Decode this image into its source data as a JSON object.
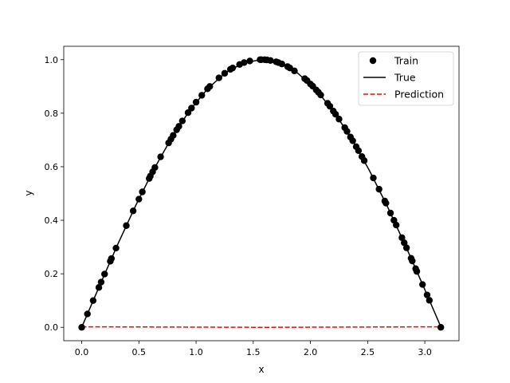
{
  "chart_data": {
    "type": "scatter",
    "title": "",
    "xlabel": "x",
    "ylabel": "y",
    "xlim": [
      -0.157,
      3.299
    ],
    "ylim": [
      -0.05,
      1.05
    ],
    "xticks": [
      0.0,
      0.5,
      1.0,
      1.5,
      2.0,
      2.5,
      3.0
    ],
    "xtick_labels": [
      "0.0",
      "0.5",
      "1.0",
      "1.5",
      "2.0",
      "2.5",
      "3.0"
    ],
    "yticks": [
      0.0,
      0.2,
      0.4,
      0.6,
      0.8,
      1.0
    ],
    "ytick_labels": [
      "0.0",
      "0.2",
      "0.4",
      "0.6",
      "0.8",
      "1.0"
    ],
    "grid": false,
    "legend_position": "top-right",
    "series": [
      {
        "name": "Train",
        "kind": "scatter",
        "color": "#000000",
        "x": [
          0.0,
          0.05,
          0.1,
          0.15,
          0.17,
          0.2,
          0.25,
          0.26,
          0.3,
          0.39,
          0.45,
          0.5,
          0.53,
          0.59,
          0.6,
          0.62,
          0.64,
          0.69,
          0.76,
          0.78,
          0.8,
          0.83,
          0.85,
          0.88,
          0.93,
          0.96,
          1.0,
          1.05,
          1.1,
          1.12,
          1.2,
          1.25,
          1.3,
          1.32,
          1.38,
          1.42,
          1.47,
          1.56,
          1.57,
          1.6,
          1.62,
          1.65,
          1.7,
          1.72,
          1.75,
          1.8,
          1.82,
          1.86,
          1.95,
          1.97,
          2.0,
          2.02,
          2.05,
          2.07,
          2.09,
          2.15,
          2.17,
          2.2,
          2.22,
          2.25,
          2.3,
          2.32,
          2.35,
          2.37,
          2.4,
          2.42,
          2.45,
          2.47,
          2.55,
          2.6,
          2.65,
          2.66,
          2.7,
          2.73,
          2.75,
          2.8,
          2.82,
          2.84,
          2.88,
          2.89,
          2.92,
          2.93,
          2.98,
          3.02,
          3.04,
          3.14
        ],
        "y": [
          0.0,
          0.05,
          0.1,
          0.149,
          0.169,
          0.199,
          0.247,
          0.257,
          0.296,
          0.38,
          0.435,
          0.479,
          0.506,
          0.556,
          0.565,
          0.581,
          0.597,
          0.637,
          0.689,
          0.703,
          0.717,
          0.738,
          0.751,
          0.771,
          0.802,
          0.819,
          0.841,
          0.867,
          0.891,
          0.9,
          0.932,
          0.949,
          0.964,
          0.969,
          0.982,
          0.989,
          0.995,
          1.0,
          1.0,
          1.0,
          0.999,
          0.997,
          0.992,
          0.989,
          0.984,
          0.974,
          0.969,
          0.958,
          0.929,
          0.922,
          0.909,
          0.901,
          0.887,
          0.878,
          0.868,
          0.837,
          0.826,
          0.808,
          0.796,
          0.778,
          0.746,
          0.732,
          0.711,
          0.697,
          0.675,
          0.66,
          0.638,
          0.623,
          0.558,
          0.516,
          0.472,
          0.464,
          0.427,
          0.4,
          0.382,
          0.335,
          0.316,
          0.297,
          0.258,
          0.248,
          0.219,
          0.209,
          0.16,
          0.121,
          0.101,
          0.0
        ]
      },
      {
        "name": "True",
        "kind": "line",
        "color": "#000000",
        "style": "solid",
        "x": [
          0.0,
          0.157,
          0.314,
          0.471,
          0.628,
          0.785,
          0.942,
          1.1,
          1.257,
          1.414,
          1.571,
          1.728,
          1.885,
          2.042,
          2.199,
          2.356,
          2.513,
          2.67,
          2.827,
          2.985,
          3.142
        ],
        "y": [
          0.0,
          0.156,
          0.309,
          0.454,
          0.588,
          0.707,
          0.809,
          0.891,
          0.951,
          0.988,
          1.0,
          0.988,
          0.951,
          0.891,
          0.809,
          0.707,
          0.588,
          0.454,
          0.309,
          0.156,
          0.0
        ]
      },
      {
        "name": "Prediction",
        "kind": "line",
        "color": "#ff0000",
        "style": "dashed",
        "x": [
          0.0,
          0.785,
          1.571,
          2.356,
          3.142
        ],
        "y": [
          0.002,
          0.001,
          0.0,
          0.001,
          0.002
        ]
      }
    ]
  }
}
